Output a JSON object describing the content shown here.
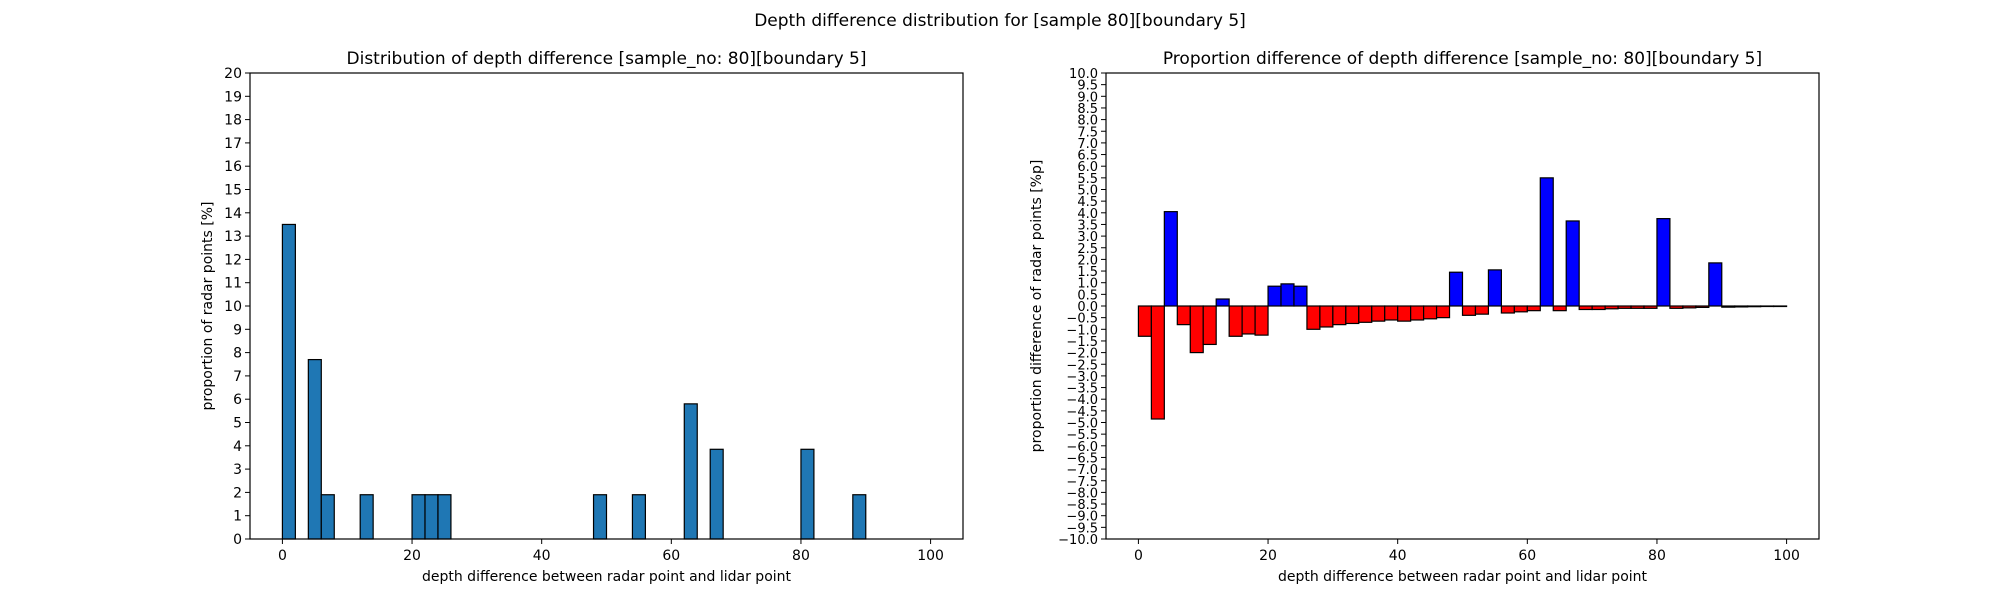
{
  "figure": {
    "suptitle": "Depth difference distribution for [sample 80][boundary 5]"
  },
  "chart_data": [
    {
      "type": "bar",
      "title": "Distribution of depth difference [sample_no: 80][boundary 5]",
      "xlabel": "depth difference between radar point and lidar point",
      "ylabel": "proportion of radar points [%]",
      "xlim": [
        -5,
        105
      ],
      "ylim": [
        0,
        20
      ],
      "xticks": [
        0,
        20,
        40,
        60,
        80,
        100
      ],
      "yticks": [
        0,
        1,
        2,
        3,
        4,
        5,
        6,
        7,
        8,
        9,
        10,
        11,
        12,
        13,
        14,
        15,
        16,
        17,
        18,
        19,
        20
      ],
      "bar_width": 2,
      "bar_color": "#1f77b4",
      "edge_color": "#000000",
      "x": [
        1,
        5,
        7,
        13,
        21,
        23,
        25,
        49,
        55,
        63,
        67,
        81,
        89
      ],
      "values": [
        13.5,
        7.7,
        1.9,
        1.9,
        1.9,
        1.9,
        1.9,
        1.9,
        1.9,
        5.8,
        3.85,
        3.85,
        1.9
      ],
      "grid": false
    },
    {
      "type": "bar",
      "title": "Proportion difference of depth difference [sample_no: 80][boundary 5]",
      "xlabel": "depth difference between radar point and lidar point",
      "ylabel": "proportion difference of radar points [%p]",
      "xlim": [
        -5,
        105
      ],
      "ylim": [
        -10,
        10
      ],
      "xticks": [
        0,
        20,
        40,
        60,
        80,
        100
      ],
      "ytick_step": 0.5,
      "bar_width": 2,
      "positive_color": "#0000ff",
      "negative_color": "#ff0000",
      "edge_color": "#000000",
      "x": [
        1,
        3,
        5,
        7,
        9,
        11,
        13,
        15,
        17,
        19,
        21,
        23,
        25,
        27,
        29,
        31,
        33,
        35,
        37,
        39,
        41,
        43,
        45,
        47,
        49,
        51,
        53,
        55,
        57,
        59,
        61,
        63,
        65,
        67,
        69,
        71,
        73,
        75,
        77,
        79,
        81,
        83,
        85,
        87,
        89,
        91,
        93,
        95,
        97,
        99
      ],
      "values": [
        -1.3,
        -4.85,
        4.05,
        -0.8,
        -2.0,
        -1.65,
        0.3,
        -1.3,
        -1.2,
        -1.25,
        0.85,
        0.95,
        0.85,
        -1.0,
        -0.9,
        -0.8,
        -0.75,
        -0.7,
        -0.65,
        -0.6,
        -0.65,
        -0.6,
        -0.55,
        -0.5,
        1.45,
        -0.4,
        -0.35,
        1.55,
        -0.3,
        -0.25,
        -0.2,
        5.5,
        -0.2,
        3.65,
        -0.15,
        -0.15,
        -0.12,
        -0.1,
        -0.1,
        -0.1,
        3.75,
        -0.1,
        -0.08,
        -0.06,
        1.85,
        -0.05,
        -0.04,
        -0.03,
        -0.02,
        -0.01
      ],
      "grid": false
    }
  ]
}
